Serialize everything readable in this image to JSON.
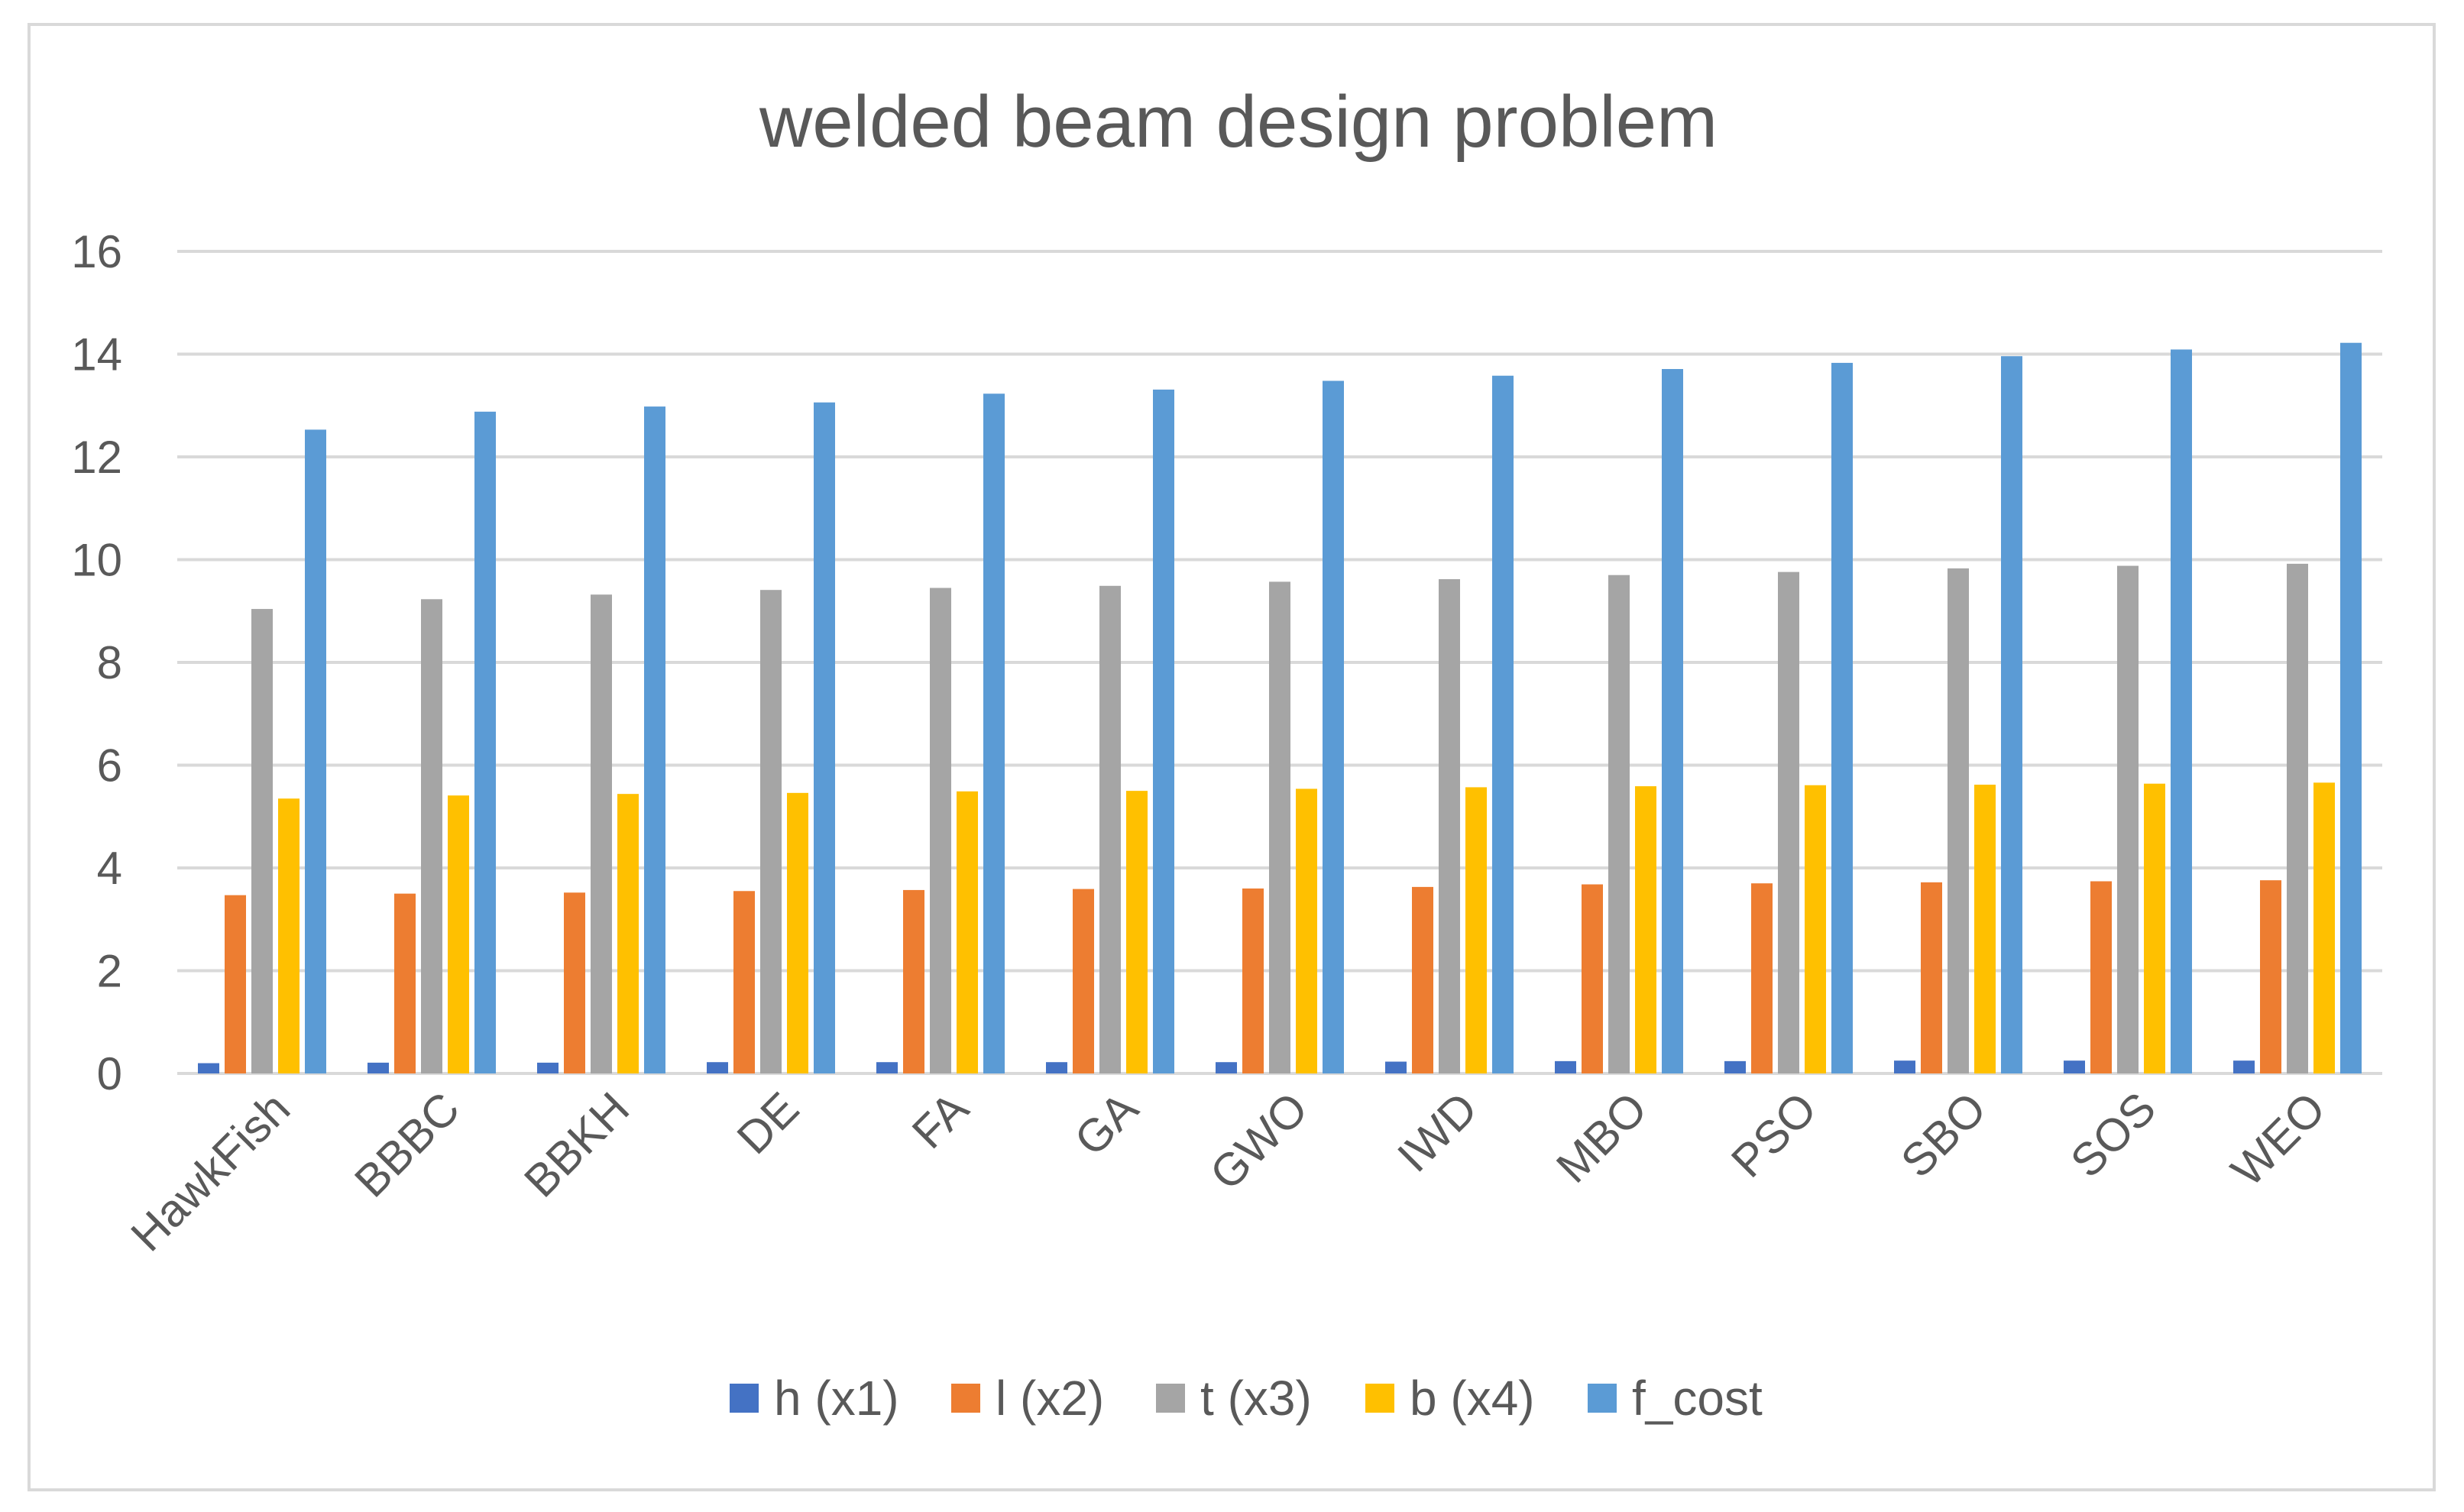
{
  "chart_data": {
    "type": "bar",
    "title": "welded beam design problem",
    "xlabel": "",
    "ylabel": "",
    "ylim": [
      0,
      16
    ],
    "yticks": [
      0,
      2,
      4,
      6,
      8,
      10,
      12,
      14,
      16
    ],
    "grid": true,
    "legend_position": "bottom",
    "categories": [
      "HawkFish",
      "BBBC",
      "BBKH",
      "DE",
      "FA",
      "GA",
      "GWO",
      "IWD",
      "MBO",
      "PSO",
      "SBO",
      "SOS",
      "WEO"
    ],
    "series": [
      {
        "name": "h (x1)",
        "color": "#4472c4",
        "values": [
          0.2,
          0.21,
          0.21,
          0.22,
          0.22,
          0.22,
          0.22,
          0.23,
          0.24,
          0.24,
          0.25,
          0.25,
          0.25
        ]
      },
      {
        "name": "l (x2)",
        "color": "#ed7d31",
        "values": [
          3.47,
          3.5,
          3.52,
          3.55,
          3.57,
          3.59,
          3.6,
          3.63,
          3.68,
          3.7,
          3.72,
          3.74,
          3.76
        ]
      },
      {
        "name": "t (x3)",
        "color": "#a5a5a5",
        "values": [
          9.04,
          9.23,
          9.32,
          9.41,
          9.45,
          9.49,
          9.57,
          9.62,
          9.7,
          9.76,
          9.83,
          9.88,
          9.92
        ]
      },
      {
        "name": "b (x4)",
        "color": "#ffc000",
        "values": [
          5.35,
          5.41,
          5.44,
          5.46,
          5.49,
          5.5,
          5.54,
          5.57,
          5.59,
          5.61,
          5.62,
          5.64,
          5.66
        ]
      },
      {
        "name": "f_cost",
        "color": "#5b9bd5",
        "values": [
          12.53,
          12.88,
          12.98,
          13.06,
          13.23,
          13.31,
          13.48,
          13.58,
          13.71,
          13.83,
          13.96,
          14.09,
          14.22
        ]
      }
    ]
  }
}
